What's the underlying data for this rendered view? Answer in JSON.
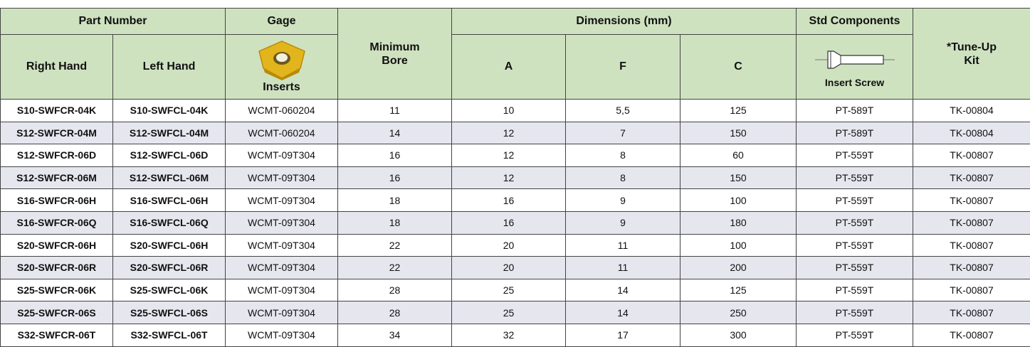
{
  "header": {
    "part_number": "Part Number",
    "gage": "Gage",
    "dimensions": "Dimensions (mm)",
    "std_components": "Std Components",
    "right_hand": "Right Hand",
    "left_hand": "Left Hand",
    "inserts": "Inserts",
    "minimum_bore": "Minimum Bore",
    "a": "A",
    "f": "F",
    "c": "C",
    "insert_screw": "Insert Screw",
    "tune_up_kit": "*Tune-Up Kit"
  },
  "table": {
    "rows": [
      [
        "S10-SWFCR-04K",
        "S10-SWFCL-04K",
        "WCMT-060204",
        "11",
        "10",
        "5,5",
        "125",
        "PT-589T",
        "TK-00804"
      ],
      [
        "S12-SWFCR-04M",
        "S12-SWFCL-04M",
        "WCMT-060204",
        "14",
        "12",
        "7",
        "150",
        "PT-589T",
        "TK-00804"
      ],
      [
        "S12-SWFCR-06D",
        "S12-SWFCL-06D",
        "WCMT-09T304",
        "16",
        "12",
        "8",
        "60",
        "PT-559T",
        "TK-00807"
      ],
      [
        "S12-SWFCR-06M",
        "S12-SWFCL-06M",
        "WCMT-09T304",
        "16",
        "12",
        "8",
        "150",
        "PT-559T",
        "TK-00807"
      ],
      [
        "S16-SWFCR-06H",
        "S16-SWFCL-06H",
        "WCMT-09T304",
        "18",
        "16",
        "9",
        "100",
        "PT-559T",
        "TK-00807"
      ],
      [
        "S16-SWFCR-06Q",
        "S16-SWFCL-06Q",
        "WCMT-09T304",
        "18",
        "16",
        "9",
        "180",
        "PT-559T",
        "TK-00807"
      ],
      [
        "S20-SWFCR-06H",
        "S20-SWFCL-06H",
        "WCMT-09T304",
        "22",
        "20",
        "11",
        "100",
        "PT-559T",
        "TK-00807"
      ],
      [
        "S20-SWFCR-06R",
        "S20-SWFCL-06R",
        "WCMT-09T304",
        "22",
        "20",
        "11",
        "200",
        "PT-559T",
        "TK-00807"
      ],
      [
        "S25-SWFCR-06K",
        "S25-SWFCL-06K",
        "WCMT-09T304",
        "28",
        "25",
        "14",
        "125",
        "PT-559T",
        "TK-00807"
      ],
      [
        "S25-SWFCR-06S",
        "S25-SWFCL-06S",
        "WCMT-09T304",
        "28",
        "25",
        "14",
        "250",
        "PT-559T",
        "TK-00807"
      ],
      [
        "S32-SWFCR-06T",
        "S32-SWFCL-06T",
        "WCMT-09T304",
        "34",
        "32",
        "17",
        "300",
        "PT-559T",
        "TK-00807"
      ]
    ]
  }
}
